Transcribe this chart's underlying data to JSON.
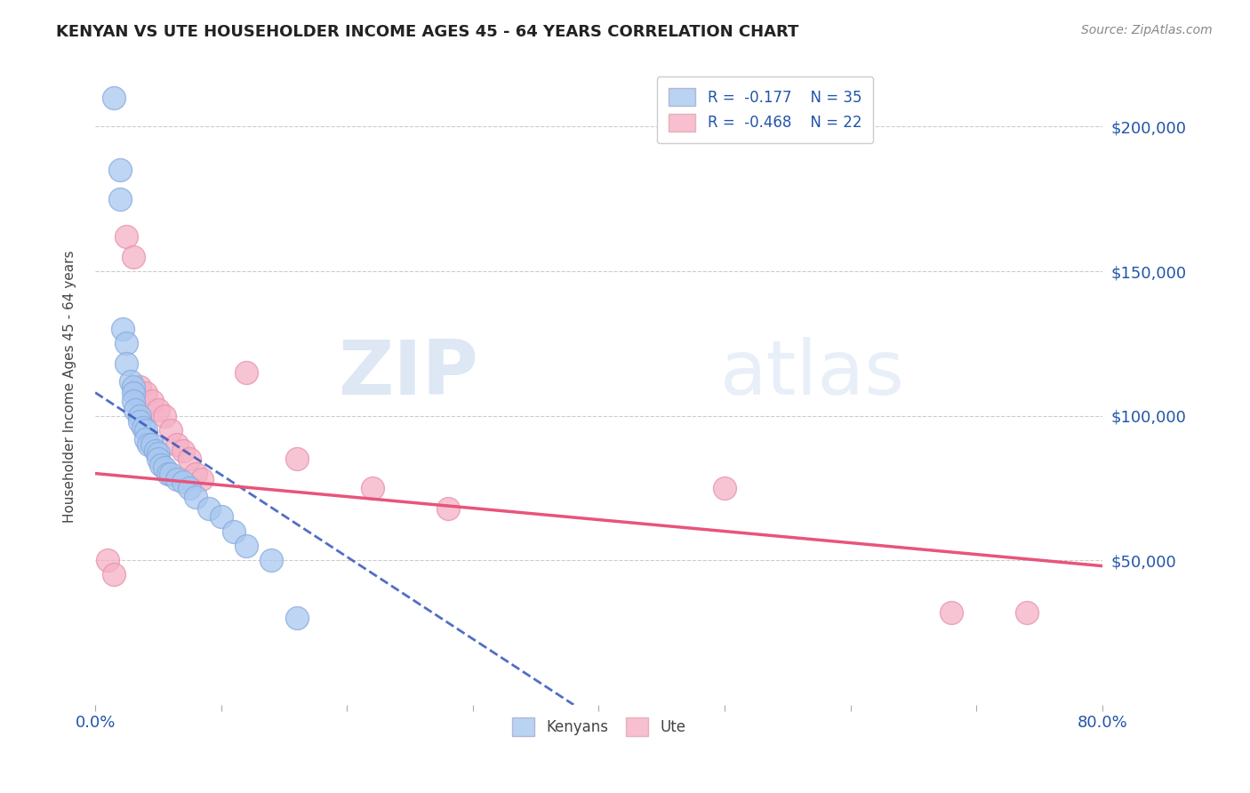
{
  "title": "KENYAN VS UTE HOUSEHOLDER INCOME AGES 45 - 64 YEARS CORRELATION CHART",
  "source": "Source: ZipAtlas.com",
  "ylabel_text": "Householder Income Ages 45 - 64 years",
  "xlim": [
    0.0,
    0.8
  ],
  "ylim": [
    0,
    220000
  ],
  "xticks": [
    0.0,
    0.1,
    0.2,
    0.3,
    0.4,
    0.5,
    0.6,
    0.7,
    0.8
  ],
  "xticklabels": [
    "0.0%",
    "",
    "",
    "",
    "",
    "",
    "",
    "",
    "80.0%"
  ],
  "ytick_positions": [
    50000,
    100000,
    150000,
    200000
  ],
  "ytick_labels": [
    "$50,000",
    "$100,000",
    "$150,000",
    "$200,000"
  ],
  "legend_r_kenyan": "-0.177",
  "legend_n_kenyan": "35",
  "legend_r_ute": "-0.468",
  "legend_n_ute": "22",
  "kenyan_color": "#a8c8f0",
  "ute_color": "#f5b0c5",
  "kenyan_line_color": "#3355bb",
  "ute_line_color": "#e8547a",
  "kenyan_scatter_edge": "#88aadd",
  "ute_scatter_edge": "#e890aa",
  "kenyan_x": [
    0.015,
    0.02,
    0.02,
    0.022,
    0.025,
    0.025,
    0.028,
    0.03,
    0.03,
    0.03,
    0.032,
    0.035,
    0.035,
    0.038,
    0.04,
    0.04,
    0.042,
    0.045,
    0.048,
    0.05,
    0.05,
    0.052,
    0.055,
    0.058,
    0.06,
    0.065,
    0.07,
    0.075,
    0.08,
    0.09,
    0.1,
    0.11,
    0.12,
    0.14,
    0.16
  ],
  "kenyan_y": [
    210000,
    185000,
    175000,
    130000,
    125000,
    118000,
    112000,
    110000,
    108000,
    105000,
    102000,
    100000,
    98000,
    96000,
    95000,
    92000,
    90000,
    90000,
    88000,
    87000,
    85000,
    83000,
    82000,
    80000,
    80000,
    78000,
    77000,
    75000,
    72000,
    68000,
    65000,
    60000,
    55000,
    50000,
    30000
  ],
  "ute_x": [
    0.01,
    0.015,
    0.025,
    0.03,
    0.035,
    0.04,
    0.045,
    0.05,
    0.055,
    0.06,
    0.065,
    0.07,
    0.075,
    0.08,
    0.085,
    0.12,
    0.16,
    0.22,
    0.28,
    0.5,
    0.68,
    0.74
  ],
  "ute_y": [
    50000,
    45000,
    162000,
    155000,
    110000,
    108000,
    105000,
    102000,
    100000,
    95000,
    90000,
    88000,
    85000,
    80000,
    78000,
    115000,
    85000,
    75000,
    68000,
    75000,
    32000,
    32000
  ],
  "kenyan_line_x0": 0.0,
  "kenyan_line_y0": 108000,
  "kenyan_line_x1": 0.38,
  "kenyan_line_y1": 0,
  "ute_line_x0": 0.0,
  "ute_line_y0": 80000,
  "ute_line_x1": 0.8,
  "ute_line_y1": 48000,
  "watermark_zip": "ZIP",
  "watermark_atlas": "atlas",
  "background_color": "#ffffff",
  "grid_color": "#cccccc",
  "title_color": "#222222",
  "source_color": "#888888",
  "axis_label_color": "#444444",
  "tick_color": "#2255aa"
}
